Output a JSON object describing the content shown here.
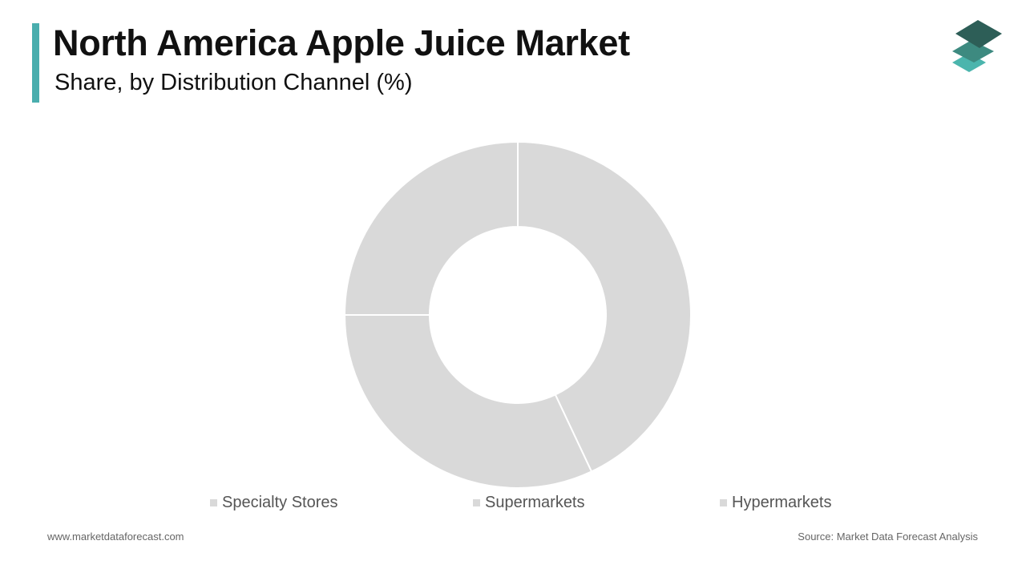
{
  "header": {
    "title": "North America Apple Juice Market",
    "subtitle": "Share, by Distribution Channel (%)",
    "accent_color": "#4aaeae"
  },
  "logo": {
    "icon": "stacked-layers-logo-icon",
    "colors": [
      "#2d5e57",
      "#3d8a80",
      "#4bb5ad"
    ]
  },
  "chart_data": {
    "type": "pie",
    "donut": true,
    "title": "",
    "slice_color": "#d9d9d9",
    "separator_color": "#ffffff",
    "series": [
      {
        "name": "Specialty Stores",
        "value": 43
      },
      {
        "name": "Supermarkets",
        "value": 32
      },
      {
        "name": "Hypermarkets",
        "value": 25
      }
    ],
    "legend_position": "bottom"
  },
  "footer": {
    "website": "www.marketdataforecast.com",
    "source": "Source: Market Data Forecast Analysis"
  }
}
